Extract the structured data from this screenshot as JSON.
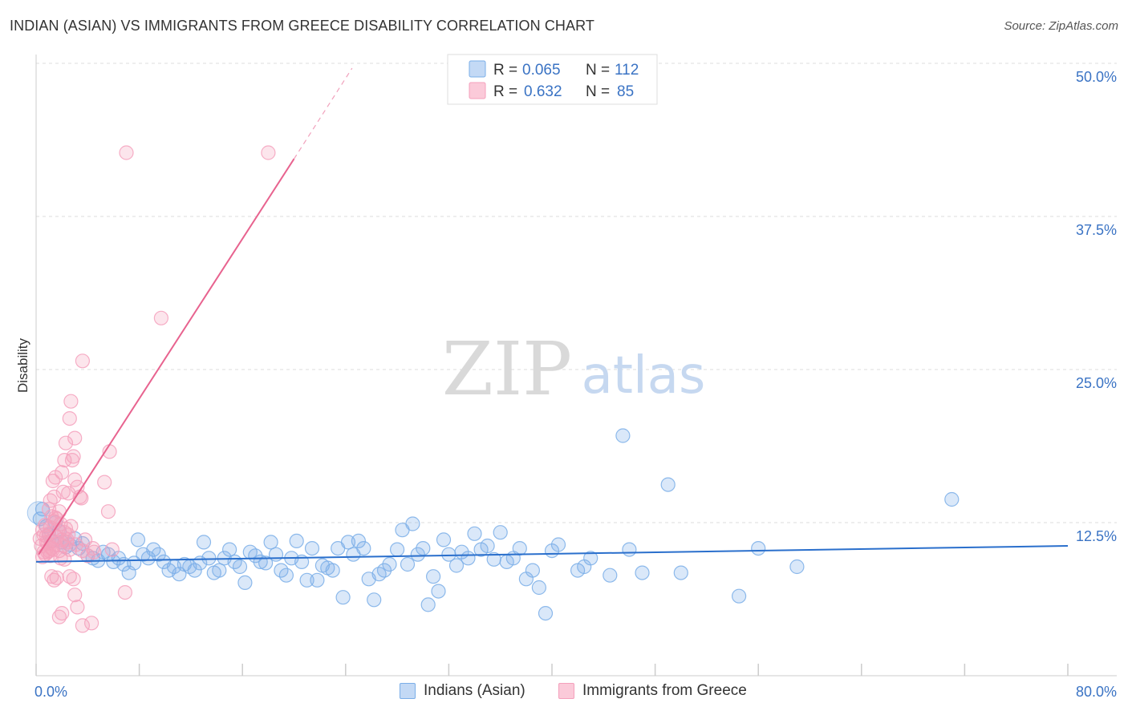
{
  "title": "INDIAN (ASIAN) VS IMMIGRANTS FROM GREECE DISABILITY CORRELATION CHART",
  "source": "Source: ZipAtlas.com",
  "watermark": {
    "zip": "ZIP",
    "atlas": "atlas"
  },
  "colors": {
    "blue": "#7aaee8",
    "blue_line": "#2a6fcc",
    "pink": "#f4a0bc",
    "pink_line": "#e8638f",
    "axis_label": "#3a73c4",
    "grid": "#dddddd"
  },
  "legend_top": {
    "blue": {
      "r_label": "R = ",
      "r_value": "0.065",
      "n_label": "N = ",
      "n_value": "112"
    },
    "pink": {
      "r_label": "R = ",
      "r_value": "0.632",
      "n_label": "N = ",
      "n_value": "85"
    }
  },
  "legend_bottom": {
    "blue": "Indians (Asian)",
    "pink": "Immigrants from Greece"
  },
  "chart_data": {
    "type": "scatter",
    "ylabel": "Disability",
    "xlim": [
      0,
      80
    ],
    "ylim": [
      0,
      50
    ],
    "x_tick_labels": [
      "0.0%",
      "80.0%"
    ],
    "y_ticks": [
      12.5,
      25.0,
      37.5,
      50.0
    ],
    "y_tick_labels": [
      "12.5%",
      "25.0%",
      "37.5%",
      "50.0%"
    ],
    "series": [
      {
        "name": "Indians (Asian)",
        "r": 0.065,
        "n": 112,
        "trend": {
          "x": [
            0,
            80
          ],
          "y": [
            9.3,
            10.6
          ]
        },
        "points": [
          [
            0.3,
            12.8
          ],
          [
            0.5,
            13.6
          ],
          [
            0.8,
            12.2
          ],
          [
            1.0,
            11.5
          ],
          [
            1.2,
            11.0
          ],
          [
            1.5,
            12.5
          ],
          [
            1.8,
            11.8
          ],
          [
            2.0,
            10.9
          ],
          [
            2.3,
            10.5
          ],
          [
            2.6,
            10.7
          ],
          [
            3.0,
            11.2
          ],
          [
            3.3,
            10.4
          ],
          [
            3.6,
            10.8
          ],
          [
            4.0,
            9.8
          ],
          [
            4.4,
            9.6
          ],
          [
            4.8,
            9.4
          ],
          [
            5.2,
            10.1
          ],
          [
            5.6,
            9.9
          ],
          [
            6.0,
            9.3
          ],
          [
            6.4,
            9.6
          ],
          [
            6.8,
            9.1
          ],
          [
            7.2,
            8.4
          ],
          [
            7.6,
            9.2
          ],
          [
            7.9,
            11.1
          ],
          [
            8.3,
            9.9
          ],
          [
            8.7,
            9.6
          ],
          [
            9.1,
            10.3
          ],
          [
            9.5,
            9.9
          ],
          [
            9.9,
            9.3
          ],
          [
            10.3,
            8.6
          ],
          [
            10.7,
            8.9
          ],
          [
            11.1,
            8.3
          ],
          [
            11.5,
            9.1
          ],
          [
            11.9,
            8.9
          ],
          [
            12.3,
            8.6
          ],
          [
            12.7,
            9.2
          ],
          [
            13.0,
            10.9
          ],
          [
            13.4,
            9.6
          ],
          [
            13.8,
            8.4
          ],
          [
            14.2,
            8.6
          ],
          [
            14.6,
            9.6
          ],
          [
            15.0,
            10.3
          ],
          [
            15.4,
            9.3
          ],
          [
            15.8,
            8.9
          ],
          [
            16.2,
            7.6
          ],
          [
            16.6,
            10.1
          ],
          [
            17.0,
            9.8
          ],
          [
            17.4,
            9.3
          ],
          [
            17.8,
            9.2
          ],
          [
            18.2,
            10.9
          ],
          [
            18.6,
            9.9
          ],
          [
            19.0,
            8.6
          ],
          [
            19.4,
            8.2
          ],
          [
            19.8,
            9.6
          ],
          [
            20.2,
            11.0
          ],
          [
            20.6,
            9.3
          ],
          [
            21.0,
            7.8
          ],
          [
            21.4,
            10.4
          ],
          [
            21.8,
            7.8
          ],
          [
            22.2,
            9.0
          ],
          [
            22.6,
            8.8
          ],
          [
            23.0,
            8.6
          ],
          [
            23.4,
            10.4
          ],
          [
            23.8,
            6.4
          ],
          [
            24.2,
            10.9
          ],
          [
            24.6,
            9.9
          ],
          [
            25.0,
            11.0
          ],
          [
            25.4,
            10.4
          ],
          [
            25.8,
            7.9
          ],
          [
            26.2,
            6.2
          ],
          [
            26.6,
            8.3
          ],
          [
            27.0,
            8.6
          ],
          [
            27.4,
            9.1
          ],
          [
            28.0,
            10.3
          ],
          [
            28.4,
            11.9
          ],
          [
            28.8,
            9.1
          ],
          [
            29.2,
            12.4
          ],
          [
            29.6,
            9.9
          ],
          [
            30.0,
            10.4
          ],
          [
            30.4,
            5.8
          ],
          [
            30.8,
            8.1
          ],
          [
            31.2,
            6.9
          ],
          [
            31.6,
            11.1
          ],
          [
            32.0,
            9.9
          ],
          [
            32.6,
            9.0
          ],
          [
            33.0,
            10.1
          ],
          [
            33.5,
            9.6
          ],
          [
            34.0,
            11.6
          ],
          [
            34.5,
            10.3
          ],
          [
            35.0,
            10.6
          ],
          [
            35.5,
            9.5
          ],
          [
            36.0,
            11.7
          ],
          [
            36.5,
            9.3
          ],
          [
            37.0,
            9.6
          ],
          [
            37.5,
            10.4
          ],
          [
            38.0,
            7.9
          ],
          [
            38.5,
            8.6
          ],
          [
            39.0,
            7.2
          ],
          [
            39.5,
            5.1
          ],
          [
            40.0,
            10.2
          ],
          [
            40.5,
            10.7
          ],
          [
            42.0,
            8.6
          ],
          [
            42.5,
            8.9
          ],
          [
            43.0,
            9.6
          ],
          [
            44.5,
            8.2
          ],
          [
            45.5,
            19.6
          ],
          [
            46.0,
            10.3
          ],
          [
            47.0,
            8.4
          ],
          [
            49.0,
            15.6
          ],
          [
            50.0,
            8.4
          ],
          [
            54.5,
            6.5
          ],
          [
            56.0,
            10.4
          ],
          [
            59.0,
            8.9
          ],
          [
            71.0,
            14.4
          ]
        ]
      },
      {
        "name": "Immigrants from Greece",
        "r": 0.632,
        "n": 85,
        "trend": {
          "x": [
            0.2,
            20.0
          ],
          "y": [
            9.9,
            42.2
          ]
        },
        "trend_dashed": {
          "x": [
            20.0,
            24.5
          ],
          "y": [
            42.2,
            49.6
          ]
        },
        "points": [
          [
            0.3,
            11.2
          ],
          [
            0.4,
            10.6
          ],
          [
            0.5,
            11.9
          ],
          [
            0.6,
            10.1
          ],
          [
            0.7,
            12.3
          ],
          [
            0.8,
            11.4
          ],
          [
            0.9,
            10.8
          ],
          [
            1.0,
            11.6
          ],
          [
            1.1,
            12.1
          ],
          [
            1.2,
            10.4
          ],
          [
            1.3,
            11.0
          ],
          [
            1.4,
            12.6
          ],
          [
            1.5,
            10.7
          ],
          [
            1.6,
            11.3
          ],
          [
            1.7,
            11.9
          ],
          [
            1.8,
            10.2
          ],
          [
            1.9,
            12.4
          ],
          [
            2.0,
            11.1
          ],
          [
            2.1,
            10.6
          ],
          [
            2.2,
            11.7
          ],
          [
            2.3,
            12.0
          ],
          [
            2.4,
            10.9
          ],
          [
            2.5,
            11.5
          ],
          [
            2.6,
            10.3
          ],
          [
            2.7,
            12.2
          ],
          [
            0.5,
            9.7
          ],
          [
            0.7,
            9.9
          ],
          [
            0.9,
            10.1
          ],
          [
            1.1,
            9.8
          ],
          [
            1.3,
            10.3
          ],
          [
            1.0,
            13.6
          ],
          [
            1.1,
            14.3
          ],
          [
            1.2,
            13.0
          ],
          [
            1.3,
            15.9
          ],
          [
            1.4,
            14.6
          ],
          [
            1.5,
            16.2
          ],
          [
            1.6,
            12.8
          ],
          [
            1.8,
            13.4
          ],
          [
            2.0,
            16.6
          ],
          [
            2.1,
            15.0
          ],
          [
            2.2,
            17.6
          ],
          [
            2.3,
            19.0
          ],
          [
            2.5,
            14.9
          ],
          [
            2.6,
            21.0
          ],
          [
            2.7,
            22.4
          ],
          [
            2.8,
            17.6
          ],
          [
            2.9,
            17.9
          ],
          [
            3.0,
            16.0
          ],
          [
            3.0,
            19.4
          ],
          [
            3.2,
            15.4
          ],
          [
            3.4,
            14.6
          ],
          [
            3.5,
            14.5
          ],
          [
            3.6,
            10.2
          ],
          [
            3.8,
            11.1
          ],
          [
            4.0,
            9.8
          ],
          [
            4.4,
            10.4
          ],
          [
            1.2,
            8.1
          ],
          [
            1.4,
            7.8
          ],
          [
            1.6,
            8.0
          ],
          [
            2.6,
            8.1
          ],
          [
            2.9,
            7.9
          ],
          [
            3.0,
            6.6
          ],
          [
            3.2,
            5.6
          ],
          [
            1.8,
            4.8
          ],
          [
            2.0,
            5.1
          ],
          [
            3.6,
            4.1
          ],
          [
            4.3,
            4.3
          ],
          [
            4.5,
            10.1
          ],
          [
            5.3,
            15.8
          ],
          [
            5.6,
            13.4
          ],
          [
            5.7,
            18.3
          ],
          [
            5.9,
            10.3
          ],
          [
            6.9,
            6.8
          ],
          [
            7.0,
            42.7
          ],
          [
            9.7,
            29.2
          ],
          [
            18.0,
            42.7
          ],
          [
            3.6,
            25.7
          ],
          [
            1.5,
            12.9
          ],
          [
            2.4,
            11.1
          ],
          [
            3.1,
            10.7
          ],
          [
            0.6,
            11.5
          ],
          [
            0.8,
            10.9
          ],
          [
            1.9,
            9.6
          ],
          [
            2.2,
            9.5
          ],
          [
            1.0,
            10.2
          ]
        ]
      }
    ]
  }
}
